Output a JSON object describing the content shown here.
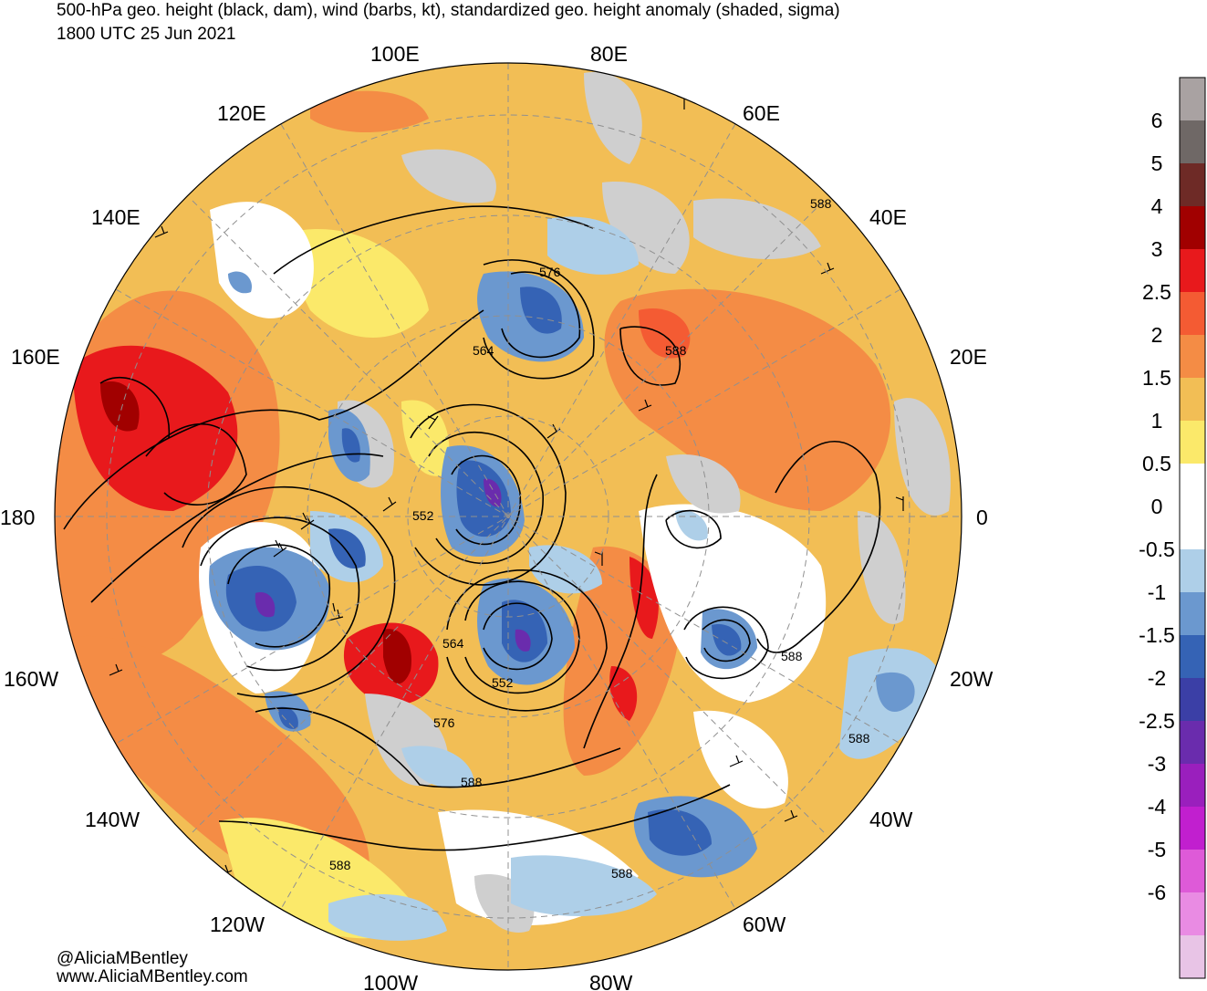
{
  "header": {
    "line1": "500-hPa geo. height (black, dam), wind (barbs, kt), standardized geo. height anomaly (shaded, sigma)",
    "line2": "1800 UTC 25 Jun 2021"
  },
  "credits": {
    "handle": "@AliciaMBentley",
    "site": "www.AliciaMBentley.com"
  },
  "longitude_labels": [
    "100E",
    "80E",
    "120E",
    "60E",
    "140E",
    "40E",
    "160E",
    "20E",
    "180",
    "0",
    "160W",
    "20W",
    "140W",
    "40W",
    "120W",
    "60W",
    "100W",
    "80W"
  ],
  "contour_labels": [
    "588",
    "576",
    "564",
    "588",
    "552",
    "564",
    "552",
    "576",
    "588",
    "588",
    "588",
    "588",
    "588"
  ],
  "colorbar": {
    "labels": [
      "6",
      "5",
      "4",
      "3",
      "2.5",
      "2",
      "1.5",
      "1",
      "0.5",
      "0",
      "-0.5",
      "-1",
      "-1.5",
      "-2",
      "-2.5",
      "-3",
      "-4",
      "-5",
      "-6"
    ],
    "colors": [
      "#a9a2a2",
      "#6f6866",
      "#6e2a26",
      "#a10000",
      "#e8191c",
      "#f45b33",
      "#f48c45",
      "#f2be55",
      "#fbe96a",
      "#ffffff",
      "#ffffff",
      "#aecfe8",
      "#6b98cf",
      "#3563b5",
      "#3b3fa6",
      "#6a2cad",
      "#9a1fbd",
      "#c11fcf",
      "#de5ad8",
      "#e98be3",
      "#e8c4e6"
    ]
  },
  "map_colors": {
    "land_gray": "#cfcfcf",
    "grid": "#909090",
    "contour": "#000000"
  }
}
